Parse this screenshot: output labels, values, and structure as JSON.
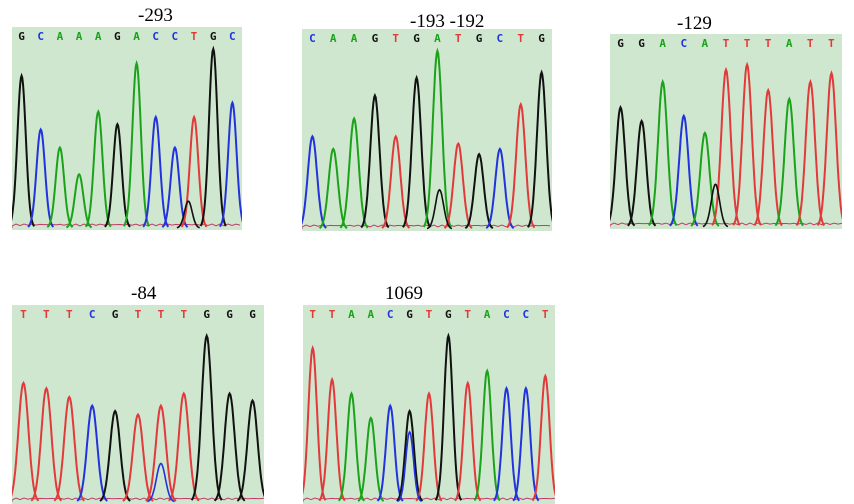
{
  "colors": {
    "A": "#1aa31a",
    "C": "#2233dd",
    "G": "#111111",
    "T": "#e23a3a",
    "bg": "#cfe7cf"
  },
  "panels": [
    {
      "label": "-293",
      "sequence": [
        "G",
        "C",
        "A",
        "A",
        "A",
        "G",
        "A",
        "C",
        "C",
        "T",
        "G",
        "C"
      ],
      "peak_heights": [
        0.85,
        0.55,
        0.45,
        0.3,
        0.65,
        0.58,
        0.92,
        0.62,
        0.45,
        0.62,
        1.0,
        0.7
      ],
      "minor_peaks": [
        {
          "base": "G",
          "pos": 8.7,
          "h": 0.15
        }
      ]
    },
    {
      "label": "-193 -192",
      "sequence": [
        "C",
        "A",
        "A",
        "G",
        "T",
        "G",
        "A",
        "T",
        "G",
        "C",
        "T",
        "G"
      ],
      "peak_heights": [
        0.52,
        0.45,
        0.62,
        0.75,
        0.52,
        0.85,
        1.0,
        0.48,
        0.42,
        0.45,
        0.7,
        0.88
      ],
      "minor_peaks": [
        {
          "base": "G",
          "pos": 6.1,
          "h": 0.22
        }
      ]
    },
    {
      "label": "-129",
      "sequence": [
        "G",
        "G",
        "A",
        "C",
        "A",
        "T",
        "T",
        "T",
        "A",
        "T",
        "T"
      ],
      "peak_heights": [
        0.7,
        0.62,
        0.85,
        0.65,
        0.55,
        0.92,
        0.95,
        0.8,
        0.75,
        0.85,
        0.9
      ],
      "minor_peaks": [
        {
          "base": "G",
          "pos": 4.5,
          "h": 0.25
        }
      ]
    },
    {
      "label": "-84",
      "sequence": [
        "T",
        "T",
        "T",
        "C",
        "G",
        "T",
        "T",
        "T",
        "G",
        "G",
        "G"
      ],
      "peak_heights": [
        0.68,
        0.65,
        0.6,
        0.55,
        0.52,
        0.5,
        0.55,
        0.62,
        0.95,
        0.62,
        0.58
      ],
      "minor_peaks": [
        {
          "base": "C",
          "pos": 6.0,
          "h": 0.22
        }
      ]
    },
    {
      "label": "1069",
      "sequence": [
        "T",
        "T",
        "A",
        "A",
        "C",
        "G",
        "T",
        "G",
        "T",
        "A",
        "C",
        "C",
        "T"
      ],
      "peak_heights": [
        0.88,
        0.7,
        0.62,
        0.48,
        0.55,
        0.52,
        0.62,
        0.95,
        0.68,
        0.75,
        0.65,
        0.65,
        0.72
      ],
      "minor_peaks": [
        {
          "base": "C",
          "pos": 5.0,
          "h": 0.4
        }
      ]
    }
  ]
}
